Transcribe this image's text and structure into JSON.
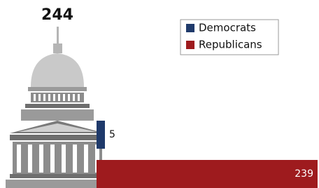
{
  "chart_data": {
    "type": "bar",
    "orientation": "horizontal",
    "title": "244",
    "series": [
      {
        "name": "Democrats",
        "color": "#1f3a6b",
        "values": [
          5
        ]
      },
      {
        "name": "Republicans",
        "color": "#9e1b1e",
        "values": [
          239
        ]
      }
    ],
    "xlim": [
      0,
      239
    ],
    "legend": "top-right"
  }
}
